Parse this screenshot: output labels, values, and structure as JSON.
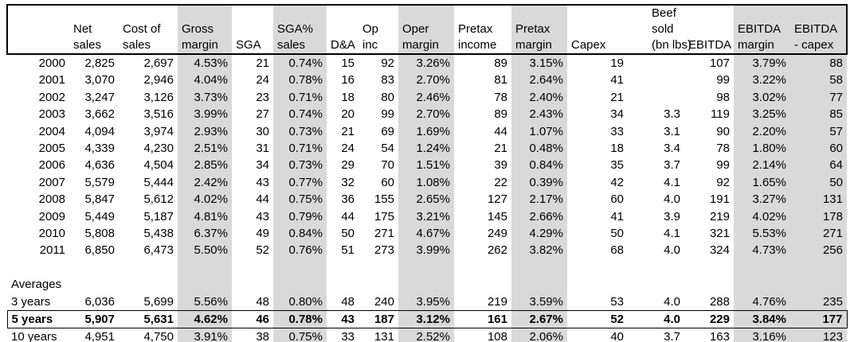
{
  "colors": {
    "shaded_column_bg": "#d9d9d9",
    "border": "#000000",
    "text": "#000000"
  },
  "table": {
    "columns": [
      {
        "id": "row_label",
        "header_lines": [],
        "shaded": false
      },
      {
        "id": "net_sales",
        "header_lines": [
          "Net",
          "sales"
        ],
        "shaded": false
      },
      {
        "id": "cost_of_sales",
        "header_lines": [
          "Cost of",
          "sales"
        ],
        "shaded": false
      },
      {
        "id": "gross_margin",
        "header_lines": [
          "Gross",
          "margin"
        ],
        "shaded": true
      },
      {
        "id": "sga",
        "header_lines": [
          "SGA"
        ],
        "shaded": false
      },
      {
        "id": "sga_pct_sales",
        "header_lines": [
          "SGA%",
          "sales"
        ],
        "shaded": true
      },
      {
        "id": "dna",
        "header_lines": [
          "D&A"
        ],
        "shaded": false
      },
      {
        "id": "op_inc",
        "header_lines": [
          "Op",
          "inc"
        ],
        "shaded": false
      },
      {
        "id": "oper_margin",
        "header_lines": [
          "Oper",
          "margin"
        ],
        "shaded": true
      },
      {
        "id": "pretax_income",
        "header_lines": [
          "Pretax",
          "income"
        ],
        "shaded": false
      },
      {
        "id": "pretax_margin",
        "header_lines": [
          "Pretax",
          "margin"
        ],
        "shaded": true
      },
      {
        "id": "capex",
        "header_lines": [
          "Capex"
        ],
        "shaded": false
      },
      {
        "id": "beef_sold",
        "header_lines": [
          "Beef",
          "sold",
          "(bn lbs)"
        ],
        "shaded": false
      },
      {
        "id": "ebitda",
        "header_lines": [
          "EBITDA"
        ],
        "shaded": false
      },
      {
        "id": "ebitda_margin",
        "header_lines": [
          "EBITDA",
          "margin"
        ],
        "shaded": true
      },
      {
        "id": "ebitda_capex",
        "header_lines": [
          "EBITDA",
          "- capex"
        ],
        "shaded": true
      }
    ],
    "rows": [
      {
        "label": "2000",
        "values": [
          "2,825",
          "2,697",
          "4.53%",
          "21",
          "0.74%",
          "15",
          "92",
          "3.26%",
          "89",
          "3.15%",
          "19",
          "",
          "107",
          "3.79%",
          "88"
        ]
      },
      {
        "label": "2001",
        "values": [
          "3,070",
          "2,946",
          "4.04%",
          "24",
          "0.78%",
          "16",
          "83",
          "2.70%",
          "81",
          "2.64%",
          "41",
          "",
          "99",
          "3.22%",
          "58"
        ]
      },
      {
        "label": "2002",
        "values": [
          "3,247",
          "3,126",
          "3.73%",
          "23",
          "0.71%",
          "18",
          "80",
          "2.46%",
          "78",
          "2.40%",
          "21",
          "",
          "98",
          "3.02%",
          "77"
        ]
      },
      {
        "label": "2003",
        "values": [
          "3,662",
          "3,516",
          "3.99%",
          "27",
          "0.74%",
          "20",
          "99",
          "2.70%",
          "89",
          "2.43%",
          "34",
          "3.3",
          "119",
          "3.25%",
          "85"
        ]
      },
      {
        "label": "2004",
        "values": [
          "4,094",
          "3,974",
          "2.93%",
          "30",
          "0.73%",
          "21",
          "69",
          "1.69%",
          "44",
          "1.07%",
          "33",
          "3.1",
          "90",
          "2.20%",
          "57"
        ]
      },
      {
        "label": "2005",
        "values": [
          "4,339",
          "4,230",
          "2.51%",
          "31",
          "0.71%",
          "24",
          "54",
          "1.24%",
          "21",
          "0.48%",
          "18",
          "3.4",
          "78",
          "1.80%",
          "60"
        ]
      },
      {
        "label": "2006",
        "values": [
          "4,636",
          "4,504",
          "2.85%",
          "34",
          "0.73%",
          "29",
          "70",
          "1.51%",
          "39",
          "0.84%",
          "35",
          "3.7",
          "99",
          "2.14%",
          "64"
        ]
      },
      {
        "label": "2007",
        "values": [
          "5,579",
          "5,444",
          "2.42%",
          "43",
          "0.77%",
          "32",
          "60",
          "1.08%",
          "22",
          "0.39%",
          "42",
          "4.1",
          "92",
          "1.65%",
          "50"
        ]
      },
      {
        "label": "2008",
        "values": [
          "5,847",
          "5,612",
          "4.02%",
          "44",
          "0.75%",
          "36",
          "155",
          "2.65%",
          "127",
          "2.17%",
          "60",
          "4.0",
          "191",
          "3.27%",
          "131"
        ]
      },
      {
        "label": "2009",
        "values": [
          "5,449",
          "5,187",
          "4.81%",
          "43",
          "0.79%",
          "44",
          "175",
          "3.21%",
          "145",
          "2.66%",
          "41",
          "3.9",
          "219",
          "4.02%",
          "178"
        ]
      },
      {
        "label": "2010",
        "values": [
          "5,808",
          "5,438",
          "6.37%",
          "49",
          "0.84%",
          "50",
          "271",
          "4.67%",
          "249",
          "4.29%",
          "50",
          "4.1",
          "321",
          "5.53%",
          "271"
        ]
      },
      {
        "label": "2011",
        "values": [
          "6,850",
          "6,473",
          "5.50%",
          "52",
          "0.76%",
          "51",
          "273",
          "3.99%",
          "262",
          "3.82%",
          "68",
          "4.0",
          "324",
          "4.73%",
          "256"
        ]
      }
    ],
    "averages_label": "Averages",
    "average_rows": [
      {
        "label": "3 years",
        "emphasis": false,
        "values": [
          "6,036",
          "5,699",
          "5.56%",
          "48",
          "0.80%",
          "48",
          "240",
          "3.95%",
          "219",
          "3.59%",
          "53",
          "4.0",
          "288",
          "4.76%",
          "235"
        ]
      },
      {
        "label": "5 years",
        "emphasis": true,
        "values": [
          "5,907",
          "5,631",
          "4.62%",
          "46",
          "0.78%",
          "43",
          "187",
          "3.12%",
          "161",
          "2.67%",
          "52",
          "4.0",
          "229",
          "3.84%",
          "177"
        ]
      },
      {
        "label": "10 years",
        "emphasis": false,
        "values": [
          "4,951",
          "4,750",
          "3.91%",
          "38",
          "0.75%",
          "33",
          "131",
          "2.52%",
          "108",
          "2.06%",
          "40",
          "3.7",
          "163",
          "3.16%",
          "123"
        ]
      }
    ]
  }
}
